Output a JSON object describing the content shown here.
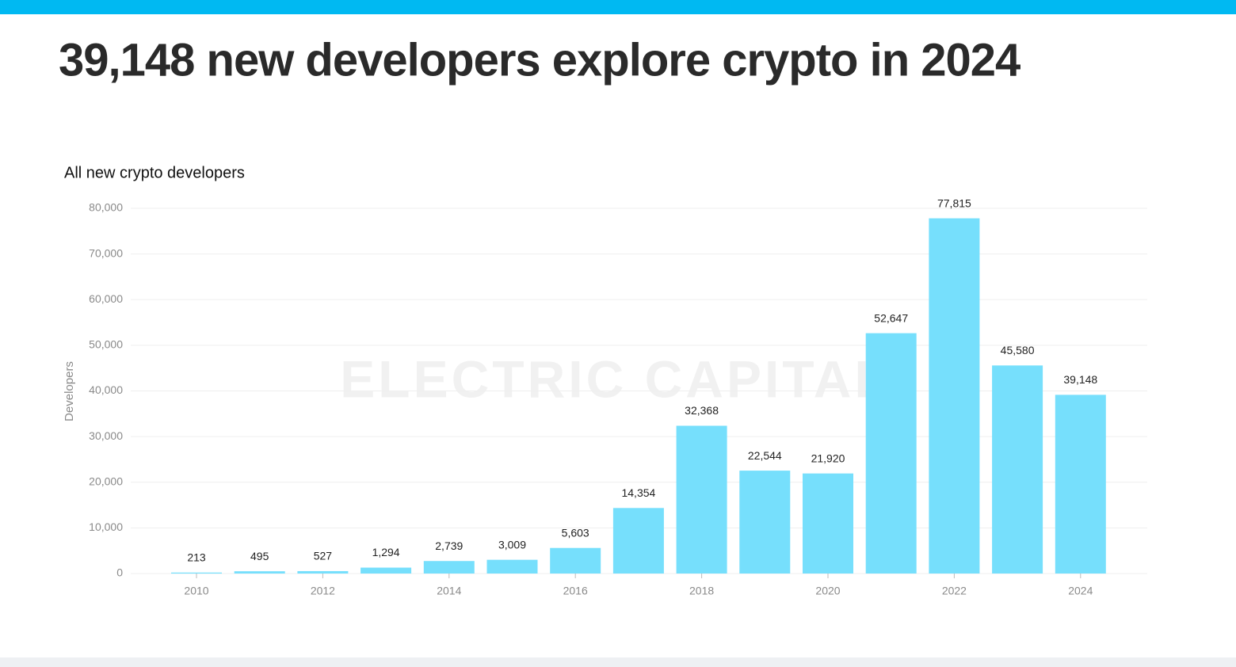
{
  "header": {
    "title": "39,148 new developers explore crypto in 2024"
  },
  "chart_data": {
    "type": "bar",
    "title": "All new crypto developers",
    "y_label": "Developers",
    "watermark": "ELECTRIC CAPITAL",
    "categories": [
      "2010",
      null,
      "2012",
      null,
      "2014",
      null,
      "2016",
      null,
      "2018",
      null,
      "2020",
      null,
      "2022",
      null,
      "2024"
    ],
    "values": [
      213,
      495,
      527,
      1294,
      2739,
      3009,
      5603,
      14354,
      32368,
      22544,
      21920,
      52647,
      77815,
      45580,
      39148
    ],
    "value_labels": [
      "213",
      "495",
      "527",
      "1,294",
      "2,739",
      "3,009",
      "5,603",
      "14,354",
      "32,368",
      "22,544",
      "21,920",
      "52,647",
      "77,815",
      "45,580",
      "39,148"
    ],
    "color": "#76dffc",
    "ylim": [
      0,
      80000
    ],
    "yticks": [
      0,
      {
        "value": 10000,
        "label": "10,000"
      },
      {
        "value": 20000,
        "label": "20,000"
      },
      {
        "value": 30000,
        "label": "30,000"
      },
      {
        "value": 40000,
        "label": "40,000"
      },
      {
        "value": 50000,
        "label": "50,000"
      },
      {
        "value": 60000,
        "label": "60,000"
      },
      {
        "value": 70000,
        "label": "70,000"
      },
      {
        "value": 80000,
        "label": "80,000"
      }
    ],
    "grid": true
  }
}
